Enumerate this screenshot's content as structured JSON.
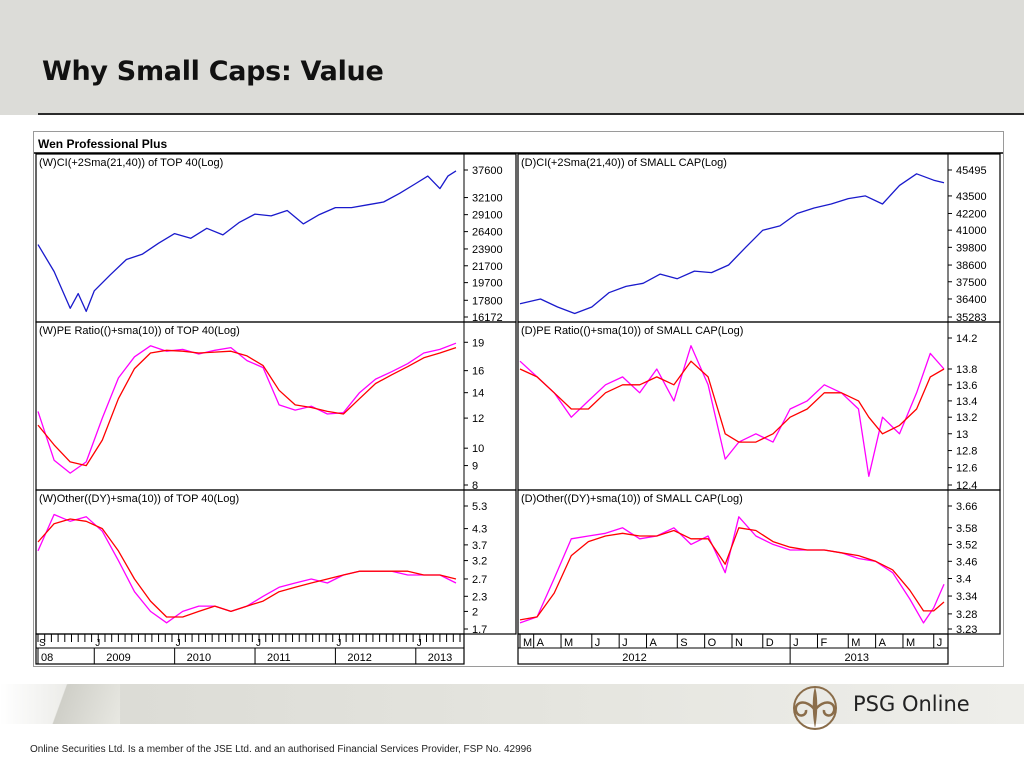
{
  "slide": {
    "title": "Why Small Caps: Value",
    "disclaimer": "Online Securities Ltd. Is a member of the JSE Ltd. and an authorised Financial Services Provider, FSP No. 42996",
    "logo_text": "PSG Online"
  },
  "chart_data": [
    {
      "id": "top40-index",
      "type": "line",
      "software_title": "Wen Professional Plus",
      "title": "(W)CI(+2Sma(21,40)) of TOP 40(Log)",
      "y_scale": "log",
      "ylim": [
        16172,
        37600
      ],
      "yticks": [
        37600,
        32100,
        29100,
        26400,
        23900,
        21700,
        19700,
        17800,
        16172
      ],
      "x_range": [
        2008.3,
        2013.55
      ],
      "series": [
        {
          "color": "#1a1acc",
          "x": [
            2008.3,
            2008.5,
            2008.7,
            2008.8,
            2008.9,
            2009.0,
            2009.2,
            2009.4,
            2009.6,
            2009.8,
            2010.0,
            2010.2,
            2010.4,
            2010.6,
            2010.8,
            2011.0,
            2011.2,
            2011.4,
            2011.6,
            2011.8,
            2012.0,
            2012.2,
            2012.4,
            2012.6,
            2012.8,
            2013.0,
            2013.15,
            2013.3,
            2013.4,
            2013.5
          ],
          "y": [
            24500,
            21000,
            17000,
            18500,
            16700,
            18800,
            20600,
            22500,
            23200,
            24700,
            26100,
            25400,
            26900,
            25900,
            27800,
            29200,
            28900,
            29800,
            27600,
            29100,
            30300,
            30300,
            30800,
            31300,
            32900,
            34800,
            36300,
            33800,
            36300,
            37400
          ]
        }
      ]
    },
    {
      "id": "smallcap-index",
      "type": "line",
      "title": "(D)CI(+2Sma(21,40)) of SMALL CAP(Log)",
      "y_scale": "log",
      "ylim": [
        35283,
        45495
      ],
      "yticks": [
        45495,
        43500,
        42200,
        41000,
        39800,
        38600,
        37500,
        36400,
        35283
      ],
      "x_range": [
        2012.21,
        2013.45
      ],
      "series": [
        {
          "color": "#1a1acc",
          "x": [
            2012.21,
            2012.27,
            2012.32,
            2012.37,
            2012.42,
            2012.47,
            2012.52,
            2012.57,
            2012.62,
            2012.67,
            2012.72,
            2012.77,
            2012.82,
            2012.87,
            2012.92,
            2012.97,
            2013.02,
            2013.07,
            2013.12,
            2013.17,
            2013.22,
            2013.27,
            2013.32,
            2013.37,
            2013.42,
            2013.45
          ],
          "y": [
            36100,
            36400,
            35900,
            35500,
            35900,
            36800,
            37200,
            37400,
            38000,
            37700,
            38200,
            38100,
            38600,
            39800,
            41000,
            41300,
            42200,
            42600,
            42900,
            43300,
            43500,
            42900,
            44300,
            45200,
            44700,
            44500
          ]
        }
      ]
    },
    {
      "id": "top40-pe",
      "type": "line",
      "title": "(W)PE Ratio(()+sma(10)) of TOP 40(Log)",
      "y_scale": "log",
      "ylim": [
        8,
        19.5
      ],
      "yticks": [
        19,
        16,
        14,
        12,
        10,
        9,
        8
      ],
      "x_range": [
        2008.3,
        2013.55
      ],
      "series": [
        {
          "color": "#ff00ff",
          "x": [
            2008.3,
            2008.5,
            2008.7,
            2008.9,
            2009.1,
            2009.3,
            2009.5,
            2009.7,
            2009.9,
            2010.1,
            2010.3,
            2010.5,
            2010.7,
            2010.9,
            2011.1,
            2011.3,
            2011.5,
            2011.7,
            2011.9,
            2012.1,
            2012.3,
            2012.5,
            2012.7,
            2012.9,
            2013.1,
            2013.3,
            2013.5
          ],
          "y": [
            12.5,
            9.3,
            8.6,
            9.2,
            12.0,
            15.3,
            17.4,
            18.6,
            18.0,
            18.2,
            17.7,
            18.1,
            18.4,
            17.0,
            16.3,
            13.0,
            12.6,
            12.9,
            12.3,
            12.4,
            14.0,
            15.2,
            15.9,
            16.7,
            17.8,
            18.2,
            18.9
          ]
        },
        {
          "color": "#ff0000",
          "x": [
            2008.3,
            2008.5,
            2008.7,
            2008.9,
            2009.1,
            2009.3,
            2009.5,
            2009.7,
            2009.9,
            2010.1,
            2010.3,
            2010.5,
            2010.7,
            2010.9,
            2011.1,
            2011.3,
            2011.5,
            2011.7,
            2011.9,
            2012.1,
            2012.3,
            2012.5,
            2012.7,
            2012.9,
            2013.1,
            2013.3,
            2013.5
          ],
          "y": [
            11.5,
            10.2,
            9.2,
            9.0,
            10.5,
            13.5,
            16.2,
            17.8,
            18.1,
            18.0,
            17.8,
            17.9,
            18.0,
            17.5,
            16.5,
            14.2,
            13.0,
            12.8,
            12.5,
            12.3,
            13.5,
            14.8,
            15.6,
            16.4,
            17.3,
            17.8,
            18.4
          ]
        }
      ]
    },
    {
      "id": "smallcap-pe",
      "type": "line",
      "title": "(D)PE Ratio(()+sma(10)) of SMALL CAP(Log)",
      "y_scale": "log",
      "ylim": [
        12.4,
        14.2
      ],
      "yticks": [
        14.2,
        13.8,
        13.6,
        13.4,
        13.2,
        13.0,
        12.8,
        12.6,
        12.4
      ],
      "x_range": [
        2012.21,
        2013.45
      ],
      "series": [
        {
          "color": "#ff00ff",
          "x": [
            2012.21,
            2012.26,
            2012.31,
            2012.36,
            2012.41,
            2012.46,
            2012.51,
            2012.56,
            2012.61,
            2012.66,
            2012.71,
            2012.76,
            2012.81,
            2012.85,
            2012.9,
            2012.95,
            2013.0,
            2013.05,
            2013.1,
            2013.15,
            2013.2,
            2013.23,
            2013.27,
            2013.32,
            2013.37,
            2013.41,
            2013.45
          ],
          "y": [
            13.9,
            13.7,
            13.5,
            13.2,
            13.4,
            13.6,
            13.7,
            13.5,
            13.8,
            13.4,
            14.1,
            13.6,
            12.7,
            12.9,
            13.0,
            12.9,
            13.3,
            13.4,
            13.6,
            13.5,
            13.3,
            12.5,
            13.2,
            13.0,
            13.5,
            14.0,
            13.8
          ]
        },
        {
          "color": "#ff0000",
          "x": [
            2012.21,
            2012.26,
            2012.31,
            2012.36,
            2012.41,
            2012.46,
            2012.51,
            2012.56,
            2012.61,
            2012.66,
            2012.71,
            2012.76,
            2012.81,
            2012.85,
            2012.9,
            2012.95,
            2013.0,
            2013.05,
            2013.1,
            2013.15,
            2013.2,
            2013.23,
            2013.27,
            2013.32,
            2013.37,
            2013.41,
            2013.45
          ],
          "y": [
            13.8,
            13.7,
            13.5,
            13.3,
            13.3,
            13.5,
            13.6,
            13.6,
            13.7,
            13.6,
            13.9,
            13.7,
            13.0,
            12.9,
            12.9,
            13.0,
            13.2,
            13.3,
            13.5,
            13.5,
            13.4,
            13.2,
            13.0,
            13.1,
            13.3,
            13.7,
            13.8
          ]
        }
      ]
    },
    {
      "id": "top40-dy",
      "type": "line",
      "title": "(W)Other((DY)+sma(10)) of TOP 40(Log)",
      "y_scale": "log",
      "ylim": [
        1.7,
        5.3
      ],
      "yticks": [
        5.3,
        4.3,
        3.7,
        3.2,
        2.7,
        2.3,
        2.0,
        1.7
      ],
      "x_range": [
        2008.3,
        2013.55
      ],
      "series": [
        {
          "color": "#ff00ff",
          "x": [
            2008.3,
            2008.5,
            2008.7,
            2008.9,
            2009.1,
            2009.3,
            2009.5,
            2009.7,
            2009.9,
            2010.1,
            2010.3,
            2010.5,
            2010.7,
            2010.9,
            2011.1,
            2011.3,
            2011.5,
            2011.7,
            2011.9,
            2012.1,
            2012.3,
            2012.5,
            2012.7,
            2012.9,
            2013.1,
            2013.3,
            2013.5
          ],
          "y": [
            3.5,
            4.9,
            4.6,
            4.8,
            4.2,
            3.2,
            2.4,
            2.0,
            1.8,
            2.0,
            2.1,
            2.1,
            2.0,
            2.1,
            2.3,
            2.5,
            2.6,
            2.7,
            2.6,
            2.8,
            2.9,
            2.9,
            2.9,
            2.8,
            2.8,
            2.8,
            2.6
          ]
        },
        {
          "color": "#ff0000",
          "x": [
            2008.3,
            2008.5,
            2008.7,
            2008.9,
            2009.1,
            2009.3,
            2009.5,
            2009.7,
            2009.9,
            2010.1,
            2010.3,
            2010.5,
            2010.7,
            2010.9,
            2011.1,
            2011.3,
            2011.5,
            2011.7,
            2011.9,
            2012.1,
            2012.3,
            2012.5,
            2012.7,
            2012.9,
            2013.1,
            2013.3,
            2013.5
          ],
          "y": [
            3.8,
            4.5,
            4.7,
            4.6,
            4.3,
            3.5,
            2.7,
            2.2,
            1.9,
            1.9,
            2.0,
            2.1,
            2.0,
            2.1,
            2.2,
            2.4,
            2.5,
            2.6,
            2.7,
            2.8,
            2.9,
            2.9,
            2.9,
            2.9,
            2.8,
            2.8,
            2.7
          ]
        }
      ]
    },
    {
      "id": "smallcap-dy",
      "type": "line",
      "title": "(D)Other((DY)+sma(10)) of SMALL CAP(Log)",
      "y_scale": "log",
      "ylim": [
        3.23,
        3.66
      ],
      "yticks": [
        3.66,
        3.58,
        3.52,
        3.46,
        3.4,
        3.34,
        3.28,
        3.23
      ],
      "x_range": [
        2012.21,
        2013.45
      ],
      "series": [
        {
          "color": "#ff00ff",
          "x": [
            2012.21,
            2012.26,
            2012.31,
            2012.36,
            2012.41,
            2012.46,
            2012.51,
            2012.56,
            2012.61,
            2012.66,
            2012.71,
            2012.76,
            2012.81,
            2012.85,
            2012.9,
            2012.95,
            2013.0,
            2013.05,
            2013.1,
            2013.15,
            2013.2,
            2013.25,
            2013.3,
            2013.35,
            2013.39,
            2013.42,
            2013.45
          ],
          "y": [
            3.25,
            3.27,
            3.4,
            3.54,
            3.55,
            3.56,
            3.58,
            3.54,
            3.55,
            3.58,
            3.52,
            3.55,
            3.42,
            3.62,
            3.55,
            3.52,
            3.5,
            3.5,
            3.5,
            3.49,
            3.47,
            3.46,
            3.42,
            3.33,
            3.25,
            3.3,
            3.38
          ]
        },
        {
          "color": "#ff0000",
          "x": [
            2012.21,
            2012.26,
            2012.31,
            2012.36,
            2012.41,
            2012.46,
            2012.51,
            2012.56,
            2012.61,
            2012.66,
            2012.71,
            2012.76,
            2012.81,
            2012.85,
            2012.9,
            2012.95,
            2013.0,
            2013.05,
            2013.1,
            2013.15,
            2013.2,
            2013.25,
            2013.3,
            2013.35,
            2013.39,
            2013.42,
            2013.45
          ],
          "y": [
            3.26,
            3.27,
            3.35,
            3.48,
            3.53,
            3.55,
            3.56,
            3.55,
            3.55,
            3.57,
            3.54,
            3.54,
            3.45,
            3.58,
            3.57,
            3.53,
            3.51,
            3.5,
            3.5,
            3.49,
            3.48,
            3.46,
            3.43,
            3.36,
            3.29,
            3.29,
            3.32
          ]
        }
      ]
    }
  ],
  "x_axes": {
    "left": {
      "tick_labels": [
        "08",
        "2009",
        "2010",
        "2011",
        "2012",
        "2013"
      ],
      "tick_x": [
        2008.3,
        2009.0,
        2010.0,
        2011.0,
        2012.0,
        2013.0
      ],
      "month_letters": [
        "S",
        "J",
        "J",
        "J",
        "J",
        "J"
      ]
    },
    "right": {
      "month_labels": [
        "M",
        "A",
        "M",
        "J",
        "J",
        "A",
        "S",
        "O",
        "N",
        "D",
        "J",
        "F",
        "M",
        "A",
        "M",
        "J"
      ],
      "month_x": [
        2012.21,
        2012.25,
        2012.33,
        2012.42,
        2012.5,
        2012.58,
        2012.67,
        2012.75,
        2012.83,
        2012.92,
        2013.0,
        2013.08,
        2013.17,
        2013.25,
        2013.33,
        2013.42
      ],
      "year_labels": [
        "2012",
        "2013"
      ],
      "year_x": [
        2012.55,
        2013.2
      ]
    }
  }
}
